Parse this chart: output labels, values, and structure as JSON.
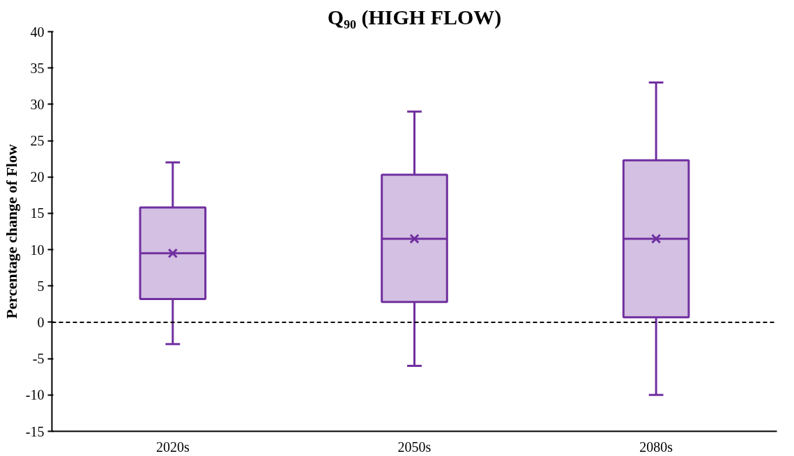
{
  "chart_data": {
    "type": "box",
    "title": "Q₉₀ (HIGH FLOW)",
    "ylabel": "Percentage change of Flow",
    "categories": [
      "2020s",
      "2050s",
      "2080s"
    ],
    "series": [
      {
        "color": "#7030a0",
        "boxes": [
          {
            "low": -3,
            "q1": 3.2,
            "median": 9.5,
            "q3": 15.8,
            "high": 22,
            "mean": 9.5
          },
          {
            "low": -6,
            "q1": 2.8,
            "median": 11.5,
            "q3": 20.3,
            "high": 29,
            "mean": 11.5
          },
          {
            "low": -10,
            "q1": 0.7,
            "median": 11.5,
            "q3": 22.3,
            "high": 33,
            "mean": 11.5
          }
        ]
      }
    ],
    "ylim": [
      -15,
      40
    ],
    "yticks": [
      -15,
      -10,
      -5,
      0,
      5,
      10,
      15,
      20,
      25,
      30,
      35,
      40
    ],
    "ref_lines": [
      {
        "axis": "y",
        "value": 0,
        "label": null,
        "color": "#000000",
        "line_style": "dashed"
      }
    ],
    "grid": false
  }
}
